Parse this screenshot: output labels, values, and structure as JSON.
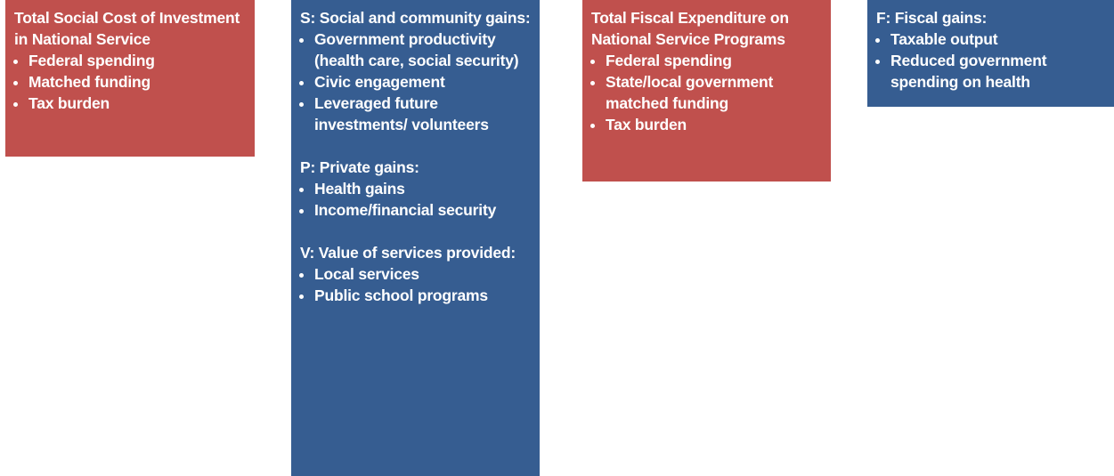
{
  "boxes": [
    {
      "sections": [
        {
          "heading": "Total Social Cost of Investment in National Service",
          "items": [
            "Federal spending",
            "Matched funding",
            "Tax burden"
          ]
        }
      ]
    },
    {
      "sections": [
        {
          "heading": "S: Social and community gains:",
          "items": [
            "Government productivity (health care, social security)",
            "Civic engagement",
            "Leveraged future investments/ volunteers"
          ]
        },
        {
          "heading": "P: Private gains:",
          "items": [
            "Health gains",
            "Income/financial security"
          ]
        },
        {
          "heading": "V: Value of services provided:",
          "items": [
            "Local services",
            "Public school programs"
          ]
        }
      ]
    },
    {
      "sections": [
        {
          "heading": "Total Fiscal Expenditure on National Service Programs",
          "items": [
            "Federal spending",
            "State/local government matched funding",
            "Tax burden"
          ]
        }
      ]
    },
    {
      "sections": [
        {
          "heading": "F: Fiscal gains:",
          "items": [
            "Taxable output",
            "Reduced government spending on health"
          ]
        }
      ]
    }
  ]
}
